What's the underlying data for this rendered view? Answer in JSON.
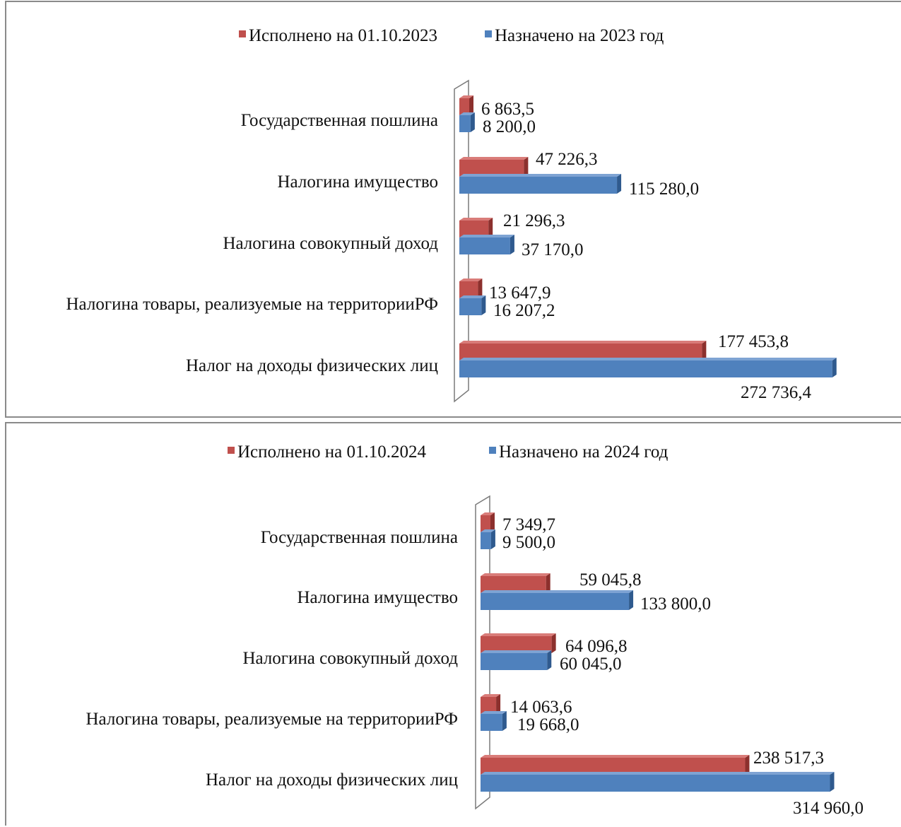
{
  "colors": {
    "executed": "#c0504d",
    "executed_dark": "#8c302d",
    "executed_top": "#d97c79",
    "planned": "#4f81bd",
    "planned_dark": "#2f5a8e",
    "planned_top": "#7ea3d3"
  },
  "chart_data": [
    {
      "type": "bar",
      "orientation": "horizontal",
      "3d": true,
      "legend_position": "top",
      "categories": [
        "Государственная пошлина",
        "Налогина имущество",
        "Налогина совокупный доход",
        "Налогина товары, реализуемые на территорииРФ",
        "Налог на доходы физических лиц"
      ],
      "series": [
        {
          "name": "Исполнено на 01.10.2023",
          "values": [
            6863.5,
            47226.3,
            21296.3,
            13647.9,
            177453.8
          ],
          "labels": [
            "6 863,5",
            "47 226,3",
            "21 296,3",
            "13 647,9",
            "177 453,8"
          ]
        },
        {
          "name": "Назначено на 2023 год",
          "values": [
            8200.0,
            115280.0,
            37170.0,
            16207.2,
            272736.4
          ],
          "labels": [
            "8 200,0",
            "115 280,0",
            "37 170,0",
            "16 207,2",
            "272 736,4"
          ]
        }
      ]
    },
    {
      "type": "bar",
      "orientation": "horizontal",
      "3d": true,
      "legend_position": "top",
      "categories": [
        "Государственная пошлина",
        "Налогина имущество",
        "Налогина совокупный доход",
        "Налогина товары, реализуемые на территорииРФ",
        "Налог на доходы физических лиц"
      ],
      "series": [
        {
          "name": "Исполнено на 01.10.2024",
          "values": [
            7349.7,
            59045.8,
            64096.8,
            14063.6,
            238517.3
          ],
          "labels": [
            "7 349,7",
            "59 045,8",
            "64 096,8",
            "14 063,6",
            "238 517,3"
          ]
        },
        {
          "name": "Назначено на 2024 год",
          "values": [
            9500.0,
            133800.0,
            60045.0,
            19668.0,
            314960.0
          ],
          "labels": [
            "9 500,0",
            "133 800,0",
            "60 045,0",
            "19 668,0",
            "314 960,0"
          ]
        }
      ]
    }
  ]
}
